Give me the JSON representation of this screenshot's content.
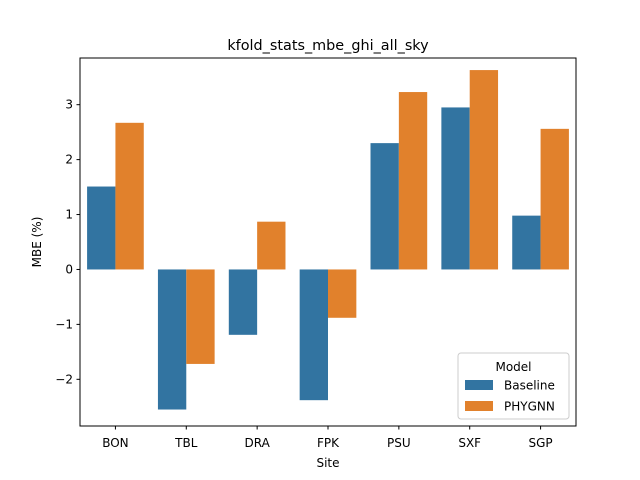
{
  "chart_data": {
    "type": "bar",
    "title": "kfold_stats_mbe_ghi_all_sky",
    "xlabel": "Site",
    "ylabel": "MBE (%)",
    "categories": [
      "BON",
      "TBL",
      "DRA",
      "FPK",
      "PSU",
      "SXF",
      "SGP"
    ],
    "series": [
      {
        "name": "Baseline",
        "color": "#3274a1",
        "values": [
          1.51,
          -2.55,
          -1.19,
          -2.38,
          2.3,
          2.95,
          0.98
        ]
      },
      {
        "name": "PHYGNN",
        "color": "#e1812c",
        "values": [
          2.67,
          -1.72,
          0.87,
          -0.88,
          3.23,
          3.63,
          2.56
        ]
      }
    ],
    "ylim": [
      -2.85,
      3.85
    ],
    "yticks": [
      -2,
      -1,
      0,
      1,
      2,
      3
    ],
    "ytick_labels": [
      "−2",
      "−1",
      "0",
      "1",
      "2",
      "3"
    ],
    "grid": false,
    "legend": {
      "title": "Model",
      "placement": "lower-right"
    }
  }
}
